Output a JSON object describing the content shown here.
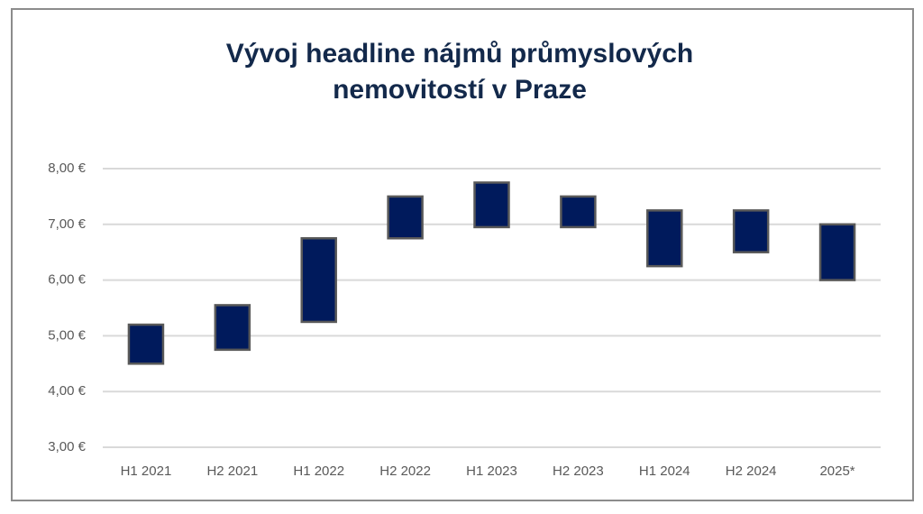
{
  "chart_data": {
    "type": "floating-bar",
    "title": "Vývoj headline nájmů průmyslových nemovitostí v Praze",
    "categories": [
      "H1 2021",
      "H2 2021",
      "H1 2022",
      "H2 2022",
      "H1 2023",
      "H2 2023",
      "H1 2024",
      "H2 2024",
      "2025*"
    ],
    "low": [
      4.5,
      4.75,
      5.25,
      6.75,
      6.95,
      6.95,
      6.25,
      6.5,
      6.0
    ],
    "high": [
      5.2,
      5.55,
      6.75,
      7.5,
      7.75,
      7.5,
      7.25,
      7.25,
      7.0
    ],
    "color": "#001a5c",
    "ylim": [
      3,
      8
    ],
    "yticks": [
      {
        "value": 3,
        "label": "3,00 €"
      },
      {
        "value": 4,
        "label": "4,00 €"
      },
      {
        "value": 5,
        "label": "5,00 €"
      },
      {
        "value": 6,
        "label": "6,00 €"
      },
      {
        "value": 7,
        "label": "7,00 €"
      },
      {
        "value": 8,
        "label": "8,00 €"
      }
    ],
    "grid": true
  }
}
